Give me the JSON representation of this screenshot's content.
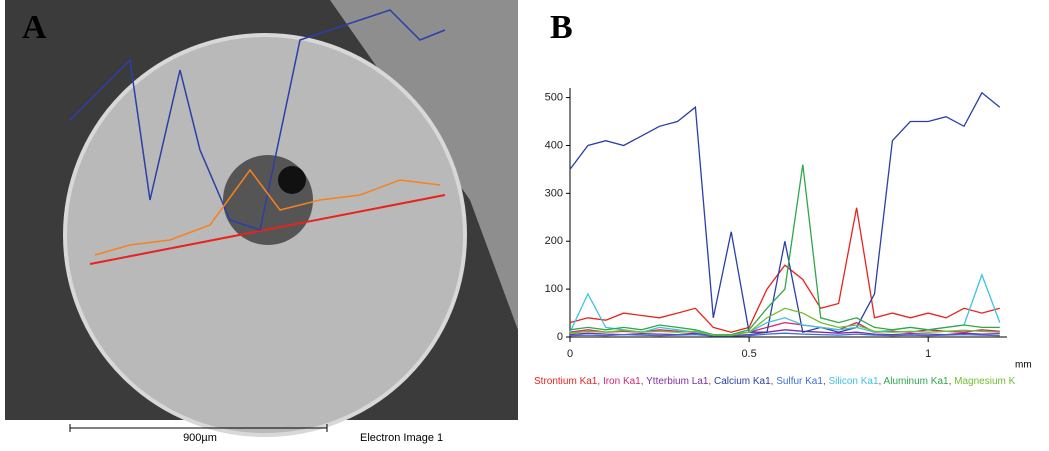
{
  "panel_a": {
    "label": "A",
    "scale_bar": "900µm",
    "image_caption": "Electron Image 1"
  },
  "chart_data": {
    "type": "line",
    "panel_label": "B",
    "x_label": "mm",
    "x": [
      0,
      0.05,
      0.1,
      0.15,
      0.2,
      0.25,
      0.3,
      0.35,
      0.4,
      0.45,
      0.5,
      0.55,
      0.6,
      0.65,
      0.7,
      0.75,
      0.8,
      0.85,
      0.9,
      0.95,
      1.0,
      1.05,
      1.1,
      1.15,
      1.2
    ],
    "xlim": [
      0,
      1.22
    ],
    "ylim": [
      0,
      520
    ],
    "xticks": [
      0,
      0.5,
      1
    ],
    "yticks": [
      0,
      100,
      200,
      300,
      400,
      500
    ],
    "legend_separator": ", ",
    "series": [
      {
        "name": "Strontium Ka1",
        "color": "#e8231e",
        "values": [
          30,
          40,
          35,
          50,
          45,
          40,
          50,
          60,
          20,
          10,
          20,
          100,
          150,
          120,
          60,
          70,
          270,
          40,
          50,
          40,
          50,
          40,
          60,
          50,
          60
        ]
      },
      {
        "name": "Iron Ka1",
        "color": "#d6246e",
        "values": [
          10,
          15,
          10,
          12,
          10,
          15,
          12,
          10,
          5,
          5,
          10,
          20,
          30,
          25,
          20,
          15,
          30,
          10,
          12,
          10,
          15,
          12,
          10,
          15,
          12
        ]
      },
      {
        "name": "Ytterbium La1",
        "color": "#7b2fa0",
        "values": [
          5,
          8,
          6,
          5,
          7,
          6,
          5,
          8,
          3,
          3,
          5,
          10,
          15,
          12,
          10,
          8,
          10,
          6,
          5,
          7,
          6,
          5,
          8,
          6,
          7
        ]
      },
      {
        "name": "Calcium Ka1",
        "color": "#2b3fa8",
        "values": [
          350,
          400,
          410,
          400,
          420,
          440,
          450,
          480,
          40,
          220,
          10,
          10,
          200,
          10,
          20,
          10,
          20,
          90,
          410,
          450,
          450,
          460,
          440,
          510,
          480
        ]
      },
      {
        "name": "Sulfur Ka1",
        "color": "#3d6fd6",
        "values": [
          3,
          4,
          3,
          5,
          4,
          3,
          4,
          5,
          2,
          2,
          3,
          6,
          8,
          6,
          5,
          4,
          6,
          4,
          3,
          4,
          3,
          4,
          5,
          4,
          3
        ]
      },
      {
        "name": "Silicon Ka1",
        "color": "#3fc3e0",
        "values": [
          10,
          90,
          20,
          15,
          10,
          20,
          15,
          10,
          5,
          5,
          10,
          30,
          40,
          25,
          20,
          15,
          20,
          10,
          15,
          20,
          15,
          20,
          25,
          130,
          30
        ]
      },
      {
        "name": "Aluminum Ka1",
        "color": "#2fa84a",
        "values": [
          15,
          20,
          15,
          20,
          15,
          25,
          20,
          15,
          5,
          5,
          15,
          60,
          100,
          360,
          40,
          30,
          40,
          20,
          15,
          20,
          15,
          20,
          25,
          20,
          20
        ]
      },
      {
        "name": "Magnesium K",
        "color": "#6fbf2f",
        "values": [
          8,
          12,
          10,
          14,
          10,
          12,
          10,
          12,
          4,
          4,
          10,
          40,
          60,
          50,
          30,
          20,
          25,
          12,
          10,
          12,
          10,
          12,
          14,
          12,
          10
        ]
      }
    ]
  }
}
